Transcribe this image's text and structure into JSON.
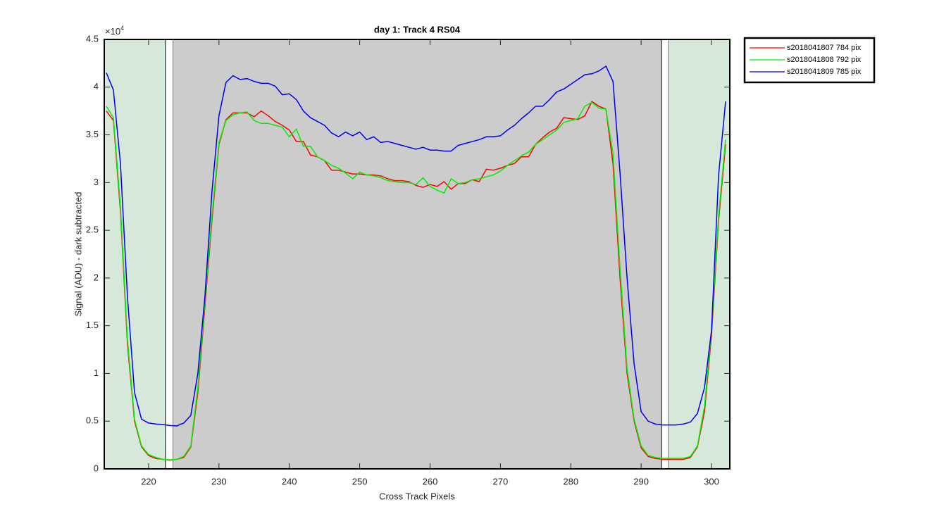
{
  "chart_data": {
    "type": "line",
    "title": "day 1: Track 4  RS04",
    "xlabel": "Cross Track Pixels",
    "ylabel": "Signal (ADU) - dark subtracted",
    "y_exponent": {
      "base": "×10",
      "power": "4"
    },
    "xlim": [
      213.7,
      302.6
    ],
    "ylim": [
      0,
      45000
    ],
    "xticks": [
      220,
      230,
      240,
      250,
      260,
      270,
      280,
      290,
      300
    ],
    "yticks": [
      {
        "value": 0,
        "label": "0"
      },
      {
        "value": 5000,
        "label": "0.5"
      },
      {
        "value": 10000,
        "label": "1"
      },
      {
        "value": 15000,
        "label": "1.5"
      },
      {
        "value": 20000,
        "label": "2"
      },
      {
        "value": 25000,
        "label": "2.5"
      },
      {
        "value": 30000,
        "label": "3"
      },
      {
        "value": 35000,
        "label": "3.5"
      },
      {
        "value": 40000,
        "label": "4"
      },
      {
        "value": 45000,
        "label": "4.5"
      }
    ],
    "legend": "outside-top-right",
    "regions": [
      {
        "x": [
          213.7,
          222.4
        ],
        "color": "#d5e8d9"
      },
      {
        "x": [
          222.4,
          223.5
        ],
        "color": "#ffffff"
      },
      {
        "x": [
          223.5,
          292.9
        ],
        "color": "#cccccc"
      },
      {
        "x": [
          292.9,
          293.9
        ],
        "color": "#ffffff"
      },
      {
        "x": [
          293.9,
          302.6
        ],
        "color": "#d5e8d9"
      }
    ],
    "x": [
      214,
      215,
      216,
      217,
      218,
      219,
      220,
      221,
      222,
      223,
      224,
      225,
      226,
      227,
      228,
      229,
      230,
      231,
      232,
      233,
      234,
      235,
      236,
      237,
      238,
      239,
      240,
      241,
      242,
      243,
      244,
      245,
      246,
      247,
      248,
      249,
      250,
      251,
      252,
      253,
      254,
      255,
      256,
      257,
      258,
      259,
      260,
      261,
      262,
      263,
      264,
      265,
      266,
      267,
      268,
      269,
      270,
      271,
      272,
      273,
      274,
      275,
      276,
      277,
      278,
      279,
      280,
      281,
      282,
      283,
      284,
      285,
      286,
      287,
      288,
      289,
      290,
      291,
      292,
      293,
      294,
      295,
      296,
      297,
      298,
      299,
      300,
      301,
      302
    ],
    "series": [
      {
        "name": "s2018041807 784 pix",
        "color": "#ff0000",
        "values": [
          37500,
          36500,
          27000,
          13000,
          5000,
          2300,
          1400,
          1100,
          1000,
          900,
          1000,
          1200,
          2300,
          8000,
          17000,
          26000,
          34000,
          36600,
          37300,
          37300,
          37300,
          36900,
          37500,
          37000,
          36400,
          36000,
          35500,
          34300,
          34300,
          32900,
          32700,
          32300,
          31300,
          31300,
          31100,
          30900,
          30900,
          30800,
          30800,
          30700,
          30400,
          30200,
          30200,
          30100,
          29700,
          29500,
          29800,
          29600,
          30100,
          29300,
          29900,
          29900,
          30300,
          30100,
          31400,
          31300,
          31500,
          31800,
          32000,
          32700,
          32700,
          34000,
          34700,
          35300,
          35700,
          36800,
          36700,
          36600,
          37000,
          38500,
          38000,
          37700,
          32000,
          20000,
          10000,
          5000,
          2200,
          1300,
          1100,
          1000,
          1000,
          1000,
          1000,
          1200,
          2300,
          6000,
          14000,
          26000,
          34000
        ]
      },
      {
        "name": "s2018041808 792 pix",
        "color": "#00ee00",
        "values": [
          38000,
          36800,
          27500,
          13500,
          5200,
          2400,
          1500,
          1200,
          1000,
          950,
          1000,
          1300,
          2400,
          8500,
          17500,
          26500,
          34200,
          36500,
          37100,
          37300,
          37400,
          36500,
          36200,
          36200,
          36000,
          35800,
          34800,
          35600,
          33800,
          33800,
          32700,
          32300,
          31800,
          31500,
          31000,
          30400,
          31100,
          30800,
          30700,
          30500,
          30200,
          30100,
          30000,
          30000,
          29800,
          30500,
          29600,
          29200,
          28900,
          30400,
          29900,
          30000,
          30300,
          30400,
          30600,
          30800,
          31200,
          31800,
          32300,
          32800,
          33200,
          34000,
          34500,
          35000,
          35500,
          36300,
          36500,
          36700,
          38000,
          38400,
          37800,
          37700,
          33000,
          21000,
          10500,
          5200,
          2400,
          1400,
          1200,
          1100,
          1100,
          1100,
          1100,
          1300,
          2400,
          6500,
          14500,
          26500,
          34500
        ]
      },
      {
        "name": "s2018041809 785 pix",
        "color": "#0000ee",
        "values": [
          41500,
          39700,
          32000,
          18000,
          8000,
          5200,
          4800,
          4700,
          4650,
          4550,
          4500,
          4800,
          5600,
          10000,
          18000,
          29000,
          37000,
          40500,
          41200,
          40800,
          40900,
          40600,
          40400,
          40400,
          40100,
          39200,
          39300,
          38700,
          37500,
          36800,
          36400,
          36000,
          35200,
          34800,
          35300,
          34900,
          35300,
          34500,
          34800,
          34200,
          34300,
          34100,
          33900,
          33700,
          33500,
          33700,
          33400,
          33400,
          33300,
          33300,
          33900,
          34100,
          34300,
          34500,
          34800,
          34800,
          34900,
          35500,
          36000,
          36700,
          37300,
          38000,
          38000,
          38700,
          39500,
          39800,
          40300,
          40800,
          41300,
          41400,
          41700,
          42200,
          40600,
          31000,
          20000,
          11000,
          6000,
          5000,
          4700,
          4600,
          4600,
          4600,
          4700,
          4900,
          5800,
          8500,
          14500,
          30700,
          38500
        ]
      }
    ]
  }
}
